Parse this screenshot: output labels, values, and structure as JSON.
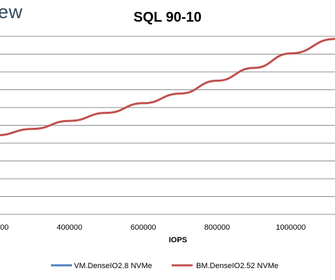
{
  "logo": {
    "text": "ew"
  },
  "chart_data": {
    "type": "line",
    "title": "SQL 90-10",
    "xlabel": "IOPS",
    "ylabel": "",
    "x_ticks": [
      "400000",
      "600000",
      "800000",
      "1000000"
    ],
    "grid": true,
    "legend_position": "bottom",
    "series": [
      {
        "name": "VM.DenseIO2.8 NVMe",
        "color": "#4f81bd",
        "points": []
      },
      {
        "name": "BM.DenseIO2.52 NVMe",
        "color": "#c0504d",
        "points": [
          [
            200000,
            2.7
          ],
          [
            300000,
            2.9
          ],
          [
            400000,
            3.15
          ],
          [
            500000,
            3.4
          ],
          [
            600000,
            3.7
          ],
          [
            700000,
            4.0
          ],
          [
            800000,
            4.4
          ],
          [
            900000,
            4.8
          ],
          [
            1000000,
            5.25
          ],
          [
            1120000,
            5.7
          ]
        ]
      }
    ]
  }
}
